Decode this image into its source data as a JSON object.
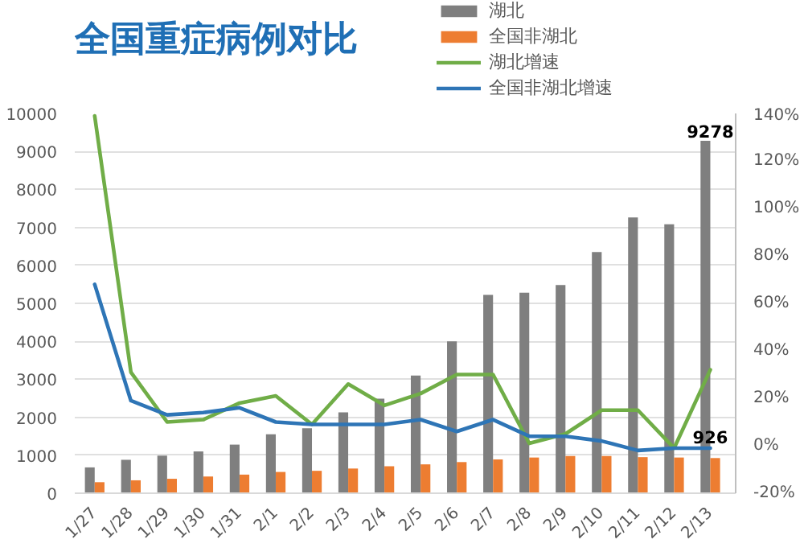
{
  "chart_data": {
    "type": "bar",
    "title": "全国重症病例对比",
    "categories": [
      "1/27",
      "1/28",
      "1/29",
      "1/30",
      "1/31",
      "2/1",
      "2/2",
      "2/3",
      "2/4",
      "2/5",
      "2/6",
      "2/7",
      "2/8",
      "2/9",
      "2/10",
      "2/11",
      "2/12",
      "2/13"
    ],
    "series": [
      {
        "name": "湖北",
        "color": "#7f7f7f",
        "values": [
          680,
          880,
          990,
          1100,
          1280,
          1550,
          1710,
          2130,
          2490,
          3100,
          4000,
          5220,
          5280,
          5480,
          6350,
          7260,
          7080,
          9278
        ],
        "value_labels": [
          null,
          null,
          null,
          null,
          null,
          null,
          null,
          null,
          null,
          null,
          null,
          null,
          null,
          null,
          null,
          null,
          null,
          "9278"
        ]
      },
      {
        "name": "全国非湖北",
        "color": "#ed7d31",
        "values": [
          290,
          340,
          380,
          440,
          490,
          560,
          590,
          650,
          710,
          760,
          820,
          890,
          940,
          980,
          980,
          950,
          940,
          926
        ],
        "value_labels": [
          null,
          null,
          null,
          null,
          null,
          null,
          null,
          null,
          null,
          null,
          null,
          null,
          null,
          null,
          null,
          null,
          null,
          "926"
        ]
      },
      {
        "name": "湖北增速",
        "type": "line",
        "axis": "y2",
        "color": "#70ad47",
        "values": [
          139,
          31,
          10,
          11,
          18,
          21,
          9,
          26,
          17,
          22,
          30,
          30,
          1,
          5,
          15,
          15,
          -1,
          32
        ]
      },
      {
        "name": "全国非湖北增速",
        "type": "line",
        "axis": "y2",
        "color": "#2e75b6",
        "values": [
          68,
          19,
          13,
          14,
          16,
          10,
          9,
          9,
          9,
          11,
          6,
          11,
          4,
          4,
          2,
          -2,
          -1,
          -1
        ]
      }
    ],
    "ylim": [
      0,
      10000
    ],
    "yticks": [
      0,
      1000,
      2000,
      3000,
      4000,
      5000,
      6000,
      7000,
      8000,
      9000,
      10000
    ],
    "y2lim": [
      -20,
      140
    ],
    "y2ticks": [
      {
        "value": -20,
        "label": "-20%"
      },
      {
        "value": 0,
        "label": "0%"
      },
      {
        "value": 20,
        "label": "20%"
      },
      {
        "value": 40,
        "label": "40%"
      },
      {
        "value": 60,
        "label": "60%"
      },
      {
        "value": 80,
        "label": "80%"
      },
      {
        "value": 100,
        "label": "100%"
      },
      {
        "value": 120,
        "label": "120%"
      },
      {
        "value": 140,
        "label": "140%"
      }
    ],
    "grid": "y",
    "legend": "top right"
  }
}
